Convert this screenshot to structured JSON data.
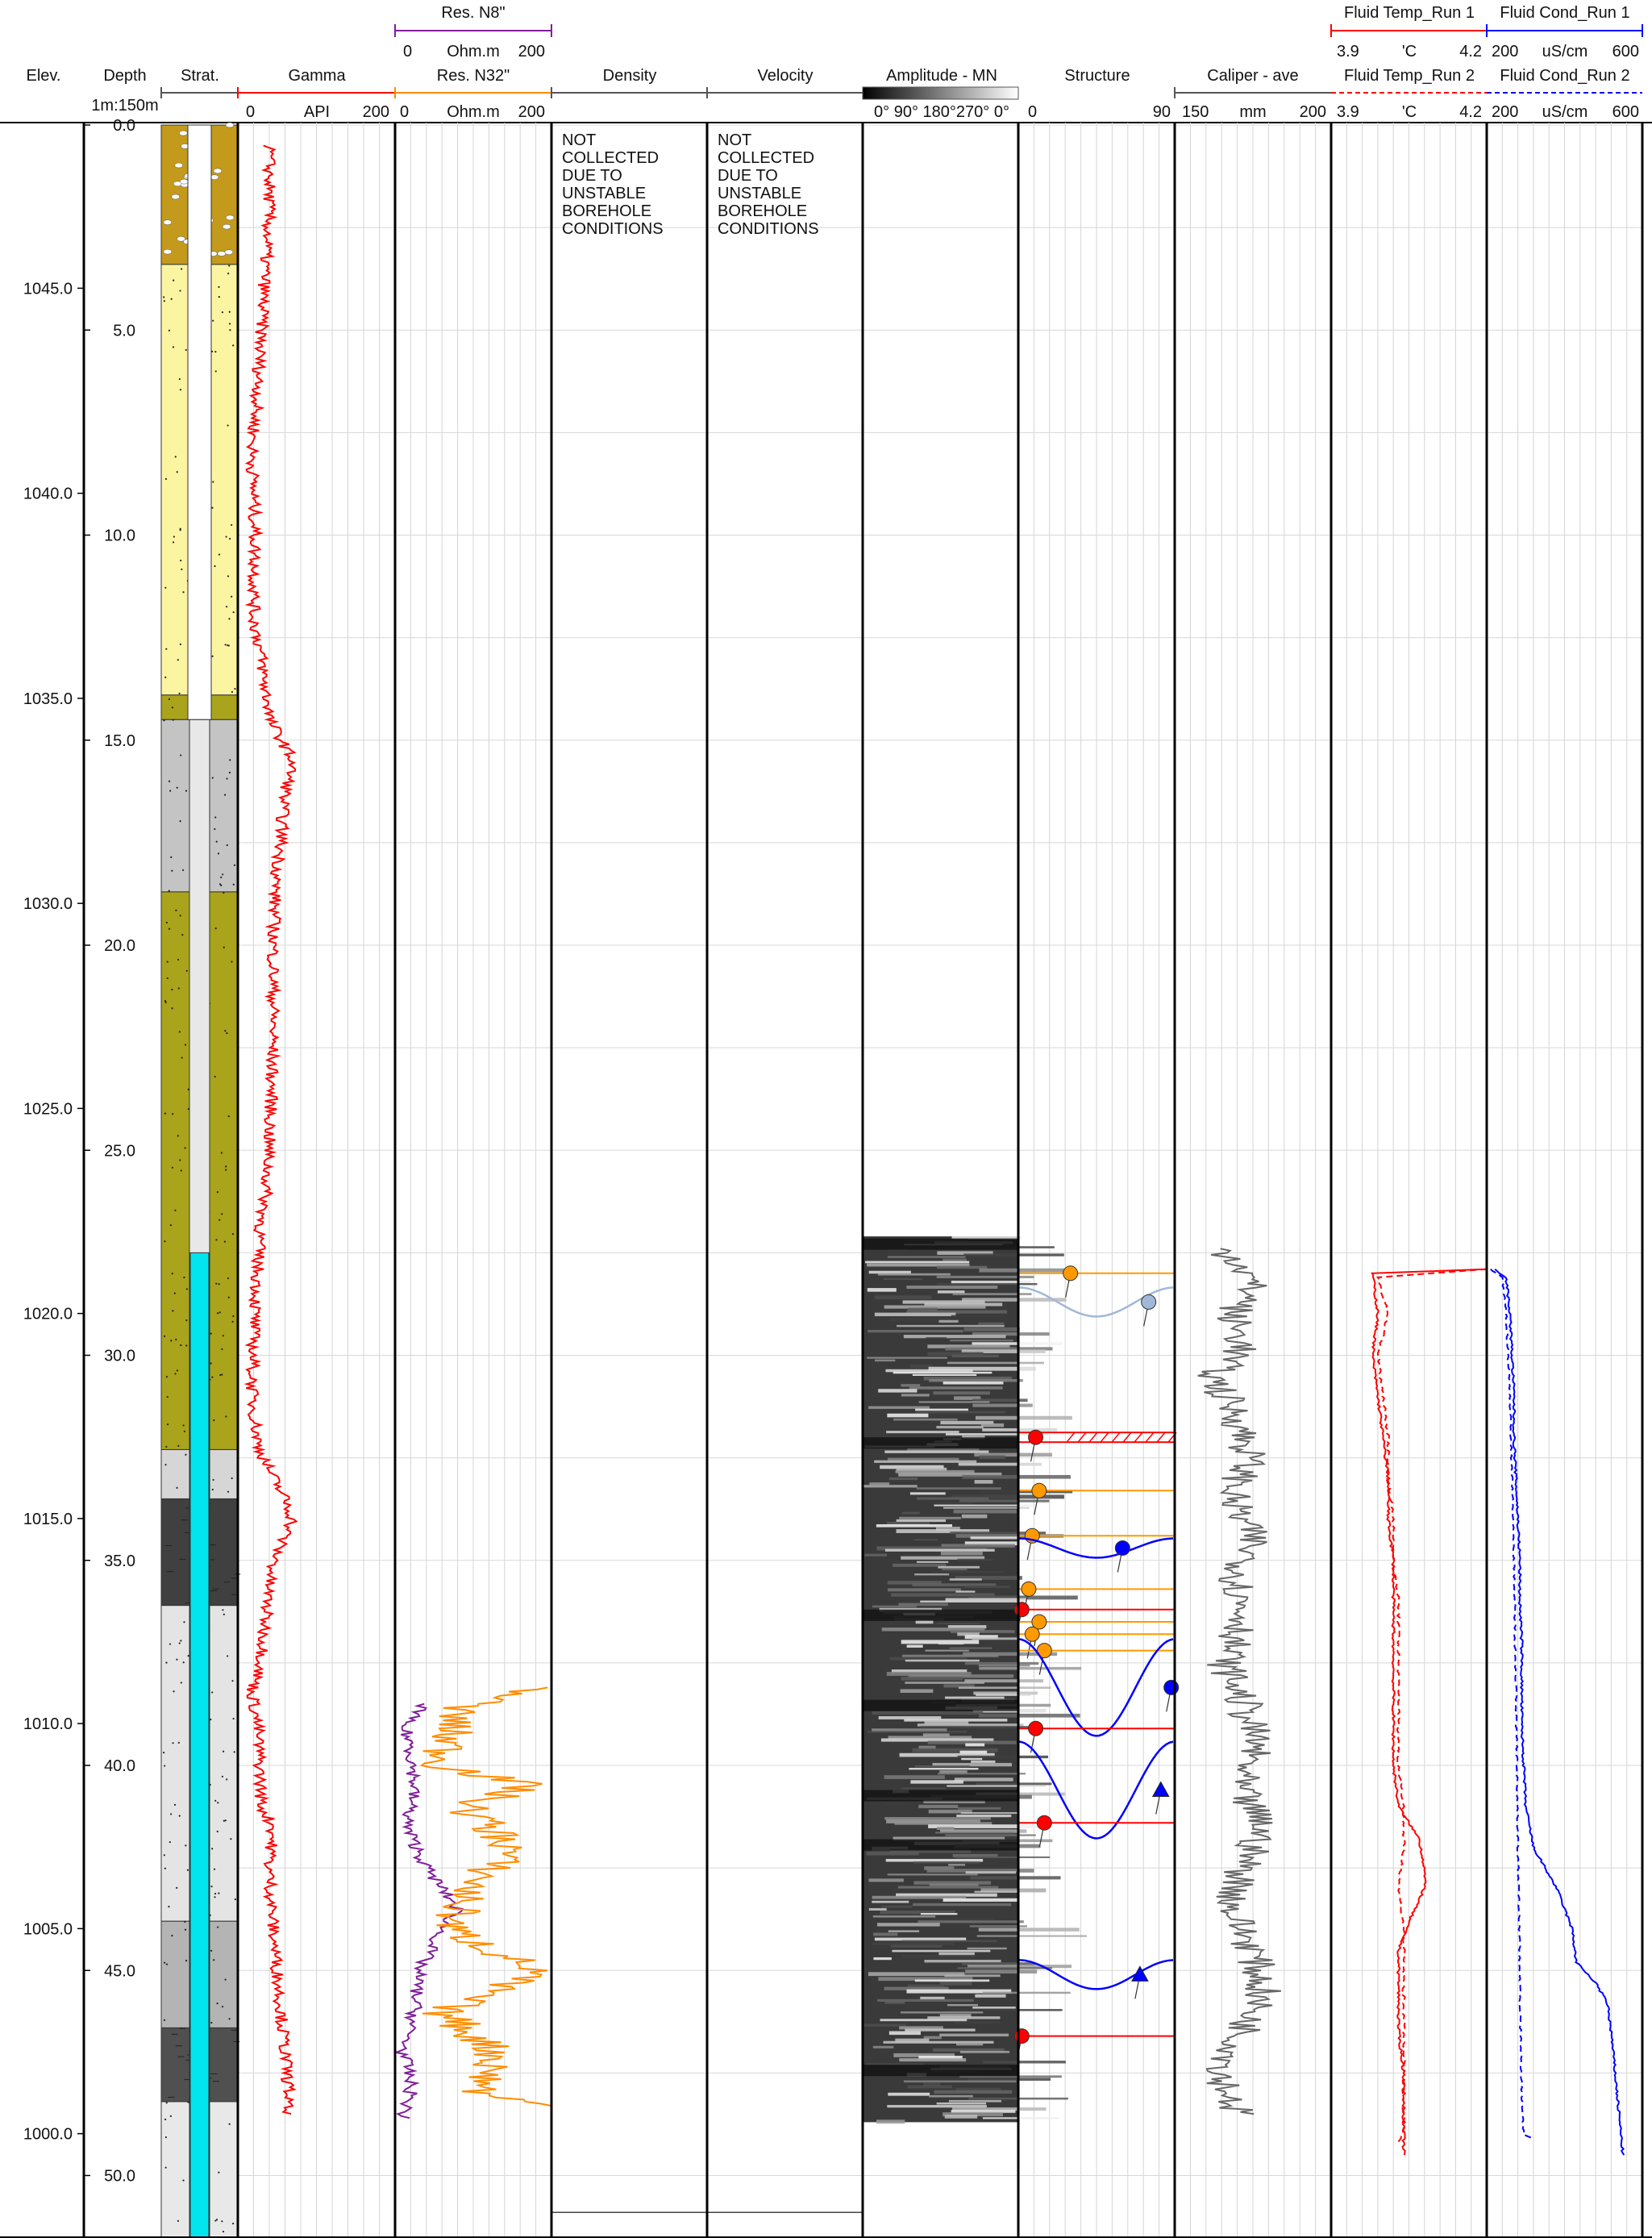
{
  "header": {
    "elev_label": "Elev.",
    "depth_label": "Depth",
    "scale_label": "1m:150m",
    "strat_label": "Strat.",
    "gamma": {
      "title": "Gamma",
      "min": "0",
      "unit": "API",
      "max": "200",
      "color": "#ff0000"
    },
    "res_n8": {
      "title": "Res. N8\"",
      "min": "0",
      "unit": "Ohm.m",
      "max": "200",
      "color": "#7f1f9a"
    },
    "res_n32": {
      "title": "Res. N32\"",
      "min": "0",
      "unit": "Ohm.m",
      "max": "200",
      "color": "#ff8c00"
    },
    "density": {
      "title": "Density"
    },
    "velocity": {
      "title": "Velocity"
    },
    "amplitude": {
      "title": "Amplitude - MN",
      "ticks": "0° 90° 180°270° 0°"
    },
    "structure": {
      "title": "Structure",
      "min": "0",
      "max": "90"
    },
    "caliper": {
      "title": "Caliper - ave",
      "min": "150",
      "unit": "mm",
      "max": "200",
      "color": "#666666"
    },
    "fluid_temp_1": {
      "title": "Fluid Temp_Run 1",
      "min": "3.9",
      "unit": "'C",
      "max": "4.2",
      "color": "#ff0000"
    },
    "fluid_temp_2": {
      "title": "Fluid Temp_Run 2",
      "min": "3.9",
      "unit": "'C",
      "max": "4.2",
      "color": "#ff0000"
    },
    "fluid_cond_1": {
      "title": "Fluid Cond_Run 1",
      "min": "200",
      "unit": "uS/cm",
      "max": "600",
      "color": "#0000ff"
    },
    "fluid_cond_2": {
      "title": "Fluid Cond_Run 2",
      "min": "200",
      "unit": "uS/cm",
      "max": "600",
      "color": "#0000ff"
    }
  },
  "notes": {
    "density_note": [
      "NOT",
      "COLLECTED",
      "DUE TO",
      "UNSTABLE",
      "BOREHOLE",
      "CONDITIONS"
    ],
    "velocity_note": [
      "NOT",
      "COLLECTED",
      "DUE TO",
      "UNSTABLE",
      "BOREHOLE",
      "CONDITIONS"
    ]
  },
  "chart_data": {
    "type": "well-log",
    "depth_range_m": [
      0,
      52.5
    ],
    "elevation_ticks": [
      "1045.0",
      "1040.0",
      "1035.0",
      "1030.0",
      "1025.0",
      "1020.0",
      "1015.0",
      "1010.0",
      "1005.0",
      "1000.0"
    ],
    "elevation_tick_depths": [
      3.98,
      8.98,
      13.98,
      18.98,
      23.98,
      28.98,
      33.98,
      38.98,
      43.98,
      48.98
    ],
    "depth_ticks": [
      "0.0",
      "5.0",
      "10.0",
      "15.0",
      "20.0",
      "25.0",
      "30.0",
      "35.0",
      "40.0",
      "45.0",
      "50.0"
    ],
    "depth_tick_values": [
      0,
      5,
      10,
      15,
      20,
      25,
      30,
      35,
      40,
      45,
      50
    ],
    "stratigraphy": [
      {
        "top": 0.0,
        "base": 3.4,
        "lith": "gravel",
        "color": "#c49a1c"
      },
      {
        "top": 3.4,
        "base": 13.9,
        "lith": "sand",
        "color": "#fbf5a2"
      },
      {
        "top": 13.9,
        "base": 14.5,
        "lith": "silty-sand",
        "color": "#a9a41b"
      },
      {
        "top": 14.5,
        "base": 18.7,
        "lith": "siltstone",
        "color": "#c4c4c4"
      },
      {
        "top": 18.7,
        "base": 32.3,
        "lith": "silty-sand",
        "color": "#a9a41b"
      },
      {
        "top": 32.3,
        "base": 33.5,
        "lith": "siltstone",
        "color": "#d6d6d6"
      },
      {
        "top": 33.5,
        "base": 36.1,
        "lith": "mudstone",
        "color": "#404040"
      },
      {
        "top": 36.1,
        "base": 43.8,
        "lith": "siltstone-light",
        "color": "#e4e4e4"
      },
      {
        "top": 43.8,
        "base": 46.4,
        "lith": "siltstone",
        "color": "#b4b4b4"
      },
      {
        "top": 46.4,
        "base": 48.2,
        "lith": "mudstone",
        "color": "#505050"
      },
      {
        "top": 48.2,
        "base": 52.5,
        "lith": "siltstone-light",
        "color": "#e8e8e8"
      }
    ],
    "casing_bottom": 14.5,
    "water_level": 27.5,
    "gamma_profile": [
      [
        0.5,
        40
      ],
      [
        2,
        40
      ],
      [
        3.5,
        35
      ],
      [
        5,
        30
      ],
      [
        6.5,
        25
      ],
      [
        8,
        18
      ],
      [
        10,
        22
      ],
      [
        12,
        20
      ],
      [
        13,
        30
      ],
      [
        13.8,
        35
      ],
      [
        14.2,
        40
      ],
      [
        14.5,
        40
      ],
      [
        14.8,
        50
      ],
      [
        15.5,
        70
      ],
      [
        16.5,
        58
      ],
      [
        17.5,
        55
      ],
      [
        18.5,
        48
      ],
      [
        20,
        45
      ],
      [
        22,
        45
      ],
      [
        24,
        42
      ],
      [
        26,
        36
      ],
      [
        27,
        28
      ],
      [
        28,
        25
      ],
      [
        29.5,
        20
      ],
      [
        31,
        18
      ],
      [
        32.2,
        26
      ],
      [
        32.8,
        40
      ],
      [
        33.5,
        60
      ],
      [
        34,
        70
      ],
      [
        34.8,
        50
      ],
      [
        35.5,
        40
      ],
      [
        36.5,
        35
      ],
      [
        37.5,
        30
      ],
      [
        38.2,
        18
      ],
      [
        39,
        25
      ],
      [
        40,
        28
      ],
      [
        41,
        30
      ],
      [
        41.5,
        45
      ],
      [
        42.5,
        40
      ],
      [
        44,
        45
      ],
      [
        45,
        50
      ],
      [
        46,
        55
      ],
      [
        47,
        60
      ],
      [
        48,
        65
      ],
      [
        48.5,
        60
      ]
    ],
    "res_n8_profile": [
      [
        38.5,
        40
      ],
      [
        39,
        10
      ],
      [
        39.5,
        20
      ],
      [
        40.5,
        25
      ],
      [
        41.5,
        15
      ],
      [
        42.5,
        40
      ],
      [
        43.5,
        80
      ],
      [
        44,
        60
      ],
      [
        45,
        30
      ],
      [
        46,
        25
      ],
      [
        47,
        10
      ],
      [
        47.5,
        18
      ],
      [
        48,
        20
      ],
      [
        48.6,
        10
      ]
    ],
    "res_n32_profile": [
      [
        38.1,
        190
      ],
      [
        38.6,
        80
      ],
      [
        39.2,
        70
      ],
      [
        40,
        60
      ],
      [
        40.5,
        170
      ],
      [
        41,
        90
      ],
      [
        42,
        150
      ],
      [
        43,
        95
      ],
      [
        44,
        70
      ],
      [
        45,
        180
      ],
      [
        46,
        60
      ],
      [
        47,
        130
      ],
      [
        48,
        110
      ],
      [
        48.3,
        190
      ]
    ],
    "caliper_profile": [
      [
        27.4,
        165
      ],
      [
        27.8,
        172
      ],
      [
        28.5,
        175
      ],
      [
        29,
        168
      ],
      [
        29.8,
        172
      ],
      [
        30.5,
        162
      ],
      [
        31.5,
        170
      ],
      [
        32.5,
        174
      ],
      [
        33.5,
        168
      ],
      [
        34.5,
        175
      ],
      [
        35.5,
        170
      ],
      [
        36.5,
        172
      ],
      [
        37.5,
        166
      ],
      [
        38.5,
        172
      ],
      [
        39.5,
        176
      ],
      [
        40.5,
        170
      ],
      [
        41.5,
        178
      ],
      [
        42.5,
        172
      ],
      [
        43.5,
        168
      ],
      [
        44.5,
        175
      ],
      [
        45.5,
        178
      ],
      [
        46.5,
        172
      ],
      [
        47.5,
        165
      ],
      [
        48.5,
        170
      ]
    ],
    "fluid_temp_run1": [
      [
        27.9,
        4.2
      ],
      [
        28.0,
        3.98
      ],
      [
        29,
        3.99
      ],
      [
        30,
        3.98
      ],
      [
        31,
        3.99
      ],
      [
        32,
        4.0
      ],
      [
        33,
        4.01
      ],
      [
        34,
        4.01
      ],
      [
        35,
        4.02
      ],
      [
        36,
        4.02
      ],
      [
        37,
        4.02
      ],
      [
        38,
        4.02
      ],
      [
        39,
        4.02
      ],
      [
        40,
        4.02
      ],
      [
        41,
        4.03
      ],
      [
        41.8,
        4.07
      ],
      [
        42.5,
        4.08
      ],
      [
        43,
        4.08
      ],
      [
        43.8,
        4.05
      ],
      [
        44.5,
        4.03
      ],
      [
        45.5,
        4.03
      ],
      [
        46.5,
        4.03
      ],
      [
        47.5,
        4.04
      ],
      [
        48.5,
        4.04
      ],
      [
        49.5,
        4.04
      ]
    ],
    "fluid_temp_run2": [
      [
        27.9,
        4.2
      ],
      [
        28.1,
        3.99
      ],
      [
        29,
        4.01
      ],
      [
        30,
        3.99
      ],
      [
        31,
        4.0
      ],
      [
        32,
        4.01
      ],
      [
        33,
        4.01
      ],
      [
        34,
        4.02
      ],
      [
        35,
        4.02
      ],
      [
        36,
        4.03
      ],
      [
        37,
        4.03
      ],
      [
        38,
        4.03
      ],
      [
        39,
        4.03
      ],
      [
        40,
        4.03
      ],
      [
        41,
        4.04
      ],
      [
        42,
        4.04
      ],
      [
        43,
        4.03
      ],
      [
        44,
        4.04
      ],
      [
        45,
        4.04
      ],
      [
        46,
        4.04
      ],
      [
        47,
        4.04
      ],
      [
        48,
        4.04
      ],
      [
        49,
        4.04
      ],
      [
        49.2,
        4.03
      ]
    ],
    "fluid_cond_run1": [
      [
        27.9,
        220
      ],
      [
        28.1,
        250
      ],
      [
        29,
        260
      ],
      [
        30,
        265
      ],
      [
        31,
        270
      ],
      [
        32,
        270
      ],
      [
        33,
        275
      ],
      [
        34,
        280
      ],
      [
        35,
        285
      ],
      [
        36,
        285
      ],
      [
        37,
        290
      ],
      [
        38,
        290
      ],
      [
        39,
        290
      ],
      [
        40,
        295
      ],
      [
        41,
        300
      ],
      [
        42,
        320
      ],
      [
        43,
        380
      ],
      [
        44,
        420
      ],
      [
        44.8,
        430
      ],
      [
        45.3,
        480
      ],
      [
        45.8,
        510
      ],
      [
        46.5,
        520
      ],
      [
        47.5,
        530
      ],
      [
        48.5,
        540
      ],
      [
        49.5,
        550
      ]
    ],
    "fluid_cond_run2": [
      [
        27.9,
        210
      ],
      [
        28.1,
        240
      ],
      [
        29,
        250
      ],
      [
        30,
        255
      ],
      [
        31,
        260
      ],
      [
        32,
        262
      ],
      [
        33,
        265
      ],
      [
        34,
        268
      ],
      [
        35,
        270
      ],
      [
        36,
        272
      ],
      [
        37,
        273
      ],
      [
        38,
        275
      ],
      [
        39,
        276
      ],
      [
        40,
        278
      ],
      [
        41,
        279
      ],
      [
        42,
        280
      ],
      [
        43,
        282
      ],
      [
        44,
        284
      ],
      [
        45,
        285
      ],
      [
        46,
        286
      ],
      [
        47,
        288
      ],
      [
        48,
        290
      ],
      [
        49,
        295
      ],
      [
        49.1,
        320
      ]
    ],
    "image_log": {
      "top": 27.1,
      "base": 48.7
    },
    "structures": [
      {
        "depth": 28.0,
        "dip": 30,
        "type": "bedding",
        "color": "#ff9900",
        "sine": false
      },
      {
        "depth": 28.7,
        "dip": 75,
        "type": "bedding-other",
        "color": "#a0b8d8",
        "sine": true
      },
      {
        "depth": 32.0,
        "dip": 10,
        "type": "fracture-zone",
        "color": "#ff0000",
        "sine": false
      },
      {
        "depth": 33.3,
        "dip": 12,
        "type": "bedding",
        "color": "#ff9900",
        "sine": false
      },
      {
        "depth": 34.4,
        "dip": 8,
        "type": "bedding",
        "color": "#ff9900",
        "sine": false
      },
      {
        "depth": 34.7,
        "dip": 60,
        "type": "joint",
        "color": "#0000ff",
        "sine": true
      },
      {
        "depth": 35.7,
        "dip": 6,
        "type": "bedding",
        "color": "#ff9900",
        "sine": false
      },
      {
        "depth": 36.2,
        "dip": 2,
        "type": "fracture",
        "color": "#ff0000",
        "sine": false
      },
      {
        "depth": 36.5,
        "dip": 12,
        "type": "bedding",
        "color": "#ff9900",
        "sine": false
      },
      {
        "depth": 36.8,
        "dip": 8,
        "type": "bedding",
        "color": "#ff9900",
        "sine": false
      },
      {
        "depth": 37.2,
        "dip": 15,
        "type": "bedding",
        "color": "#ff9900",
        "sine": false
      },
      {
        "depth": 38.1,
        "dip": 88,
        "type": "joint",
        "color": "#0000ff",
        "sine": true
      },
      {
        "depth": 39.1,
        "dip": 10,
        "type": "fracture",
        "color": "#ff0000",
        "sine": false
      },
      {
        "depth": 40.6,
        "dip": 82,
        "type": "shear",
        "color": "#0000ff",
        "sine": true
      },
      {
        "depth": 41.4,
        "dip": 15,
        "type": "fracture",
        "color": "#ff0000",
        "sine": false
      },
      {
        "depth": 45.1,
        "dip": 70,
        "type": "shear",
        "color": "#0000ff",
        "sine": true
      },
      {
        "depth": 46.6,
        "dip": 2,
        "type": "fracture",
        "color": "#ff0000",
        "sine": false
      }
    ]
  }
}
